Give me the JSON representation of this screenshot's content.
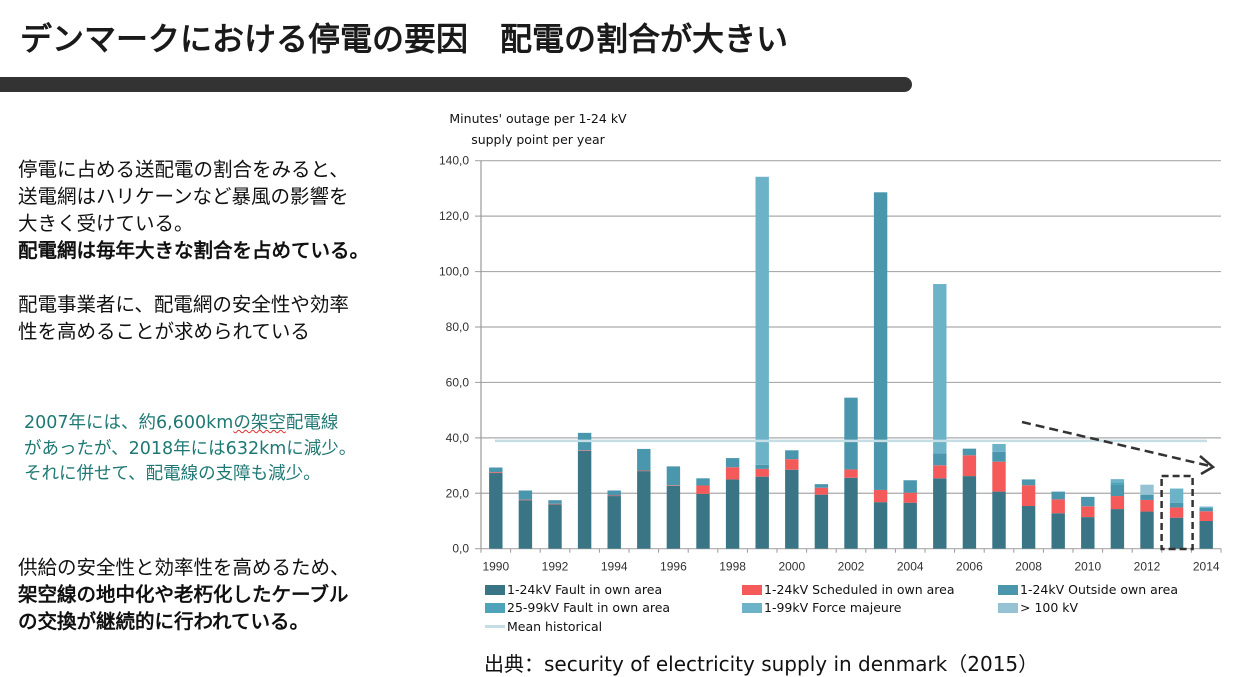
{
  "title": "デンマークにおける停電の要因　配電の割合が大きい",
  "left_text": {
    "para1": [
      "停電に占める送配電の割合をみると、",
      "送電網はハリケーンなど暴風の影響を",
      "大きく受けている。"
    ],
    "para1_bold": "配電網は毎年大きな割合を占めている。",
    "para2": [
      "配電事業者に、配電網の安全性や効率",
      "性を高めることが求められている"
    ],
    "note": [
      "2007年には、約6,600km",
      "の架空",
      "配電線",
      "があったが、2018年には632kmに減少。",
      "それに併せて、配電線の支障も減少。"
    ],
    "para3": "供給の安全性と効率性を高めるため、",
    "para3_bold": [
      "架空線の地中化や老朽化したケーブル",
      "の交換が継続的に行われている。"
    ]
  },
  "source": "出典：security of electricity supply in denmark（2015）",
  "chart_data": {
    "type": "bar",
    "stacked": true,
    "ylabel": "Minutes' outage per 1-24 kV supply point per year",
    "ylabel_lines": [
      "Minutes' outage per 1-24 kV",
      "supply point per year"
    ],
    "ylim": [
      0,
      140
    ],
    "yticks": [
      "0,0",
      "20,0",
      "40,0",
      "60,0",
      "80,0",
      "100,0",
      "120,0",
      "140,0"
    ],
    "ytick_values": [
      0,
      20,
      40,
      60,
      80,
      100,
      120,
      140
    ],
    "categories": [
      1990,
      1991,
      1992,
      1993,
      1994,
      1995,
      1996,
      1997,
      1998,
      1999,
      2000,
      2001,
      2002,
      2003,
      2004,
      2005,
      2006,
      2007,
      2008,
      2009,
      2010,
      2011,
      2012,
      2013,
      2014
    ],
    "xtick_labels": [
      "1990",
      "1992",
      "1994",
      "1996",
      "1998",
      "2000",
      "2002",
      "2004",
      "2006",
      "2008",
      "2010",
      "2012",
      "2014"
    ],
    "grid": true,
    "legend_position": "bottom",
    "series": [
      {
        "name": "1-24kV Fault in own area",
        "color": "#3a7585",
        "values": [
          27.3,
          17.5,
          16.0,
          35.3,
          19.0,
          28.0,
          22.7,
          19.8,
          25.0,
          26.0,
          28.5,
          19.5,
          25.6,
          16.8,
          16.6,
          25.4,
          26.2,
          20.6,
          15.4,
          12.8,
          11.4,
          14.3,
          13.4,
          11.2,
          10.0
        ]
      },
      {
        "name": "1-24kV Scheduled in own area",
        "color": "#f55a5a",
        "values": [
          0.3,
          0.2,
          0.2,
          0.2,
          0.2,
          0.2,
          0.2,
          3.0,
          4.4,
          2.8,
          3.8,
          2.5,
          3.0,
          4.4,
          3.6,
          4.7,
          7.5,
          10.8,
          7.5,
          5.0,
          3.9,
          4.7,
          4.2,
          3.7,
          3.5
        ]
      },
      {
        "name": "1-24kV Outside own area",
        "color": "#4a96ad",
        "values": [
          1.7,
          3.3,
          1.3,
          6.3,
          1.8,
          7.8,
          6.8,
          2.6,
          3.3,
          1.5,
          3.2,
          1.3,
          25.9,
          107.4,
          4.5,
          4.3,
          2.4,
          3.6,
          2.1,
          2.8,
          3.4,
          4.0,
          1.9,
          1.7,
          1.2
        ]
      },
      {
        "name": "25-99kV Fault in own area",
        "color": "#4ea3ba",
        "values": [
          0,
          0,
          0,
          0,
          0,
          0,
          0,
          0,
          0,
          0,
          0,
          0,
          0,
          0,
          0,
          0,
          0,
          0,
          0,
          0,
          0,
          1.0,
          0,
          0,
          0
        ]
      },
      {
        "name": "1-99kV Force majeure",
        "color": "#6db3c8",
        "values": [
          0,
          0,
          0,
          0,
          0,
          0,
          0,
          0,
          0,
          103.9,
          0,
          0,
          0,
          0,
          0,
          61.1,
          0,
          2.8,
          0,
          0,
          0,
          1.1,
          0,
          5.1,
          0.5
        ]
      },
      {
        "name": "> 100 kV",
        "color": "#96c3d3",
        "values": [
          0,
          0,
          0,
          0,
          0,
          0,
          0,
          0,
          0,
          0,
          0,
          0,
          0,
          0,
          0,
          0,
          0,
          0,
          0,
          0,
          0,
          0,
          3.6,
          0,
          0
        ]
      }
    ],
    "mean_historical": {
      "name": "Mean historical",
      "color": "#c5dde5",
      "value": 38.9
    },
    "annotations": {
      "trend_arrow": "dashed arrow indicating declining trend",
      "highlight_year": 2013
    }
  }
}
